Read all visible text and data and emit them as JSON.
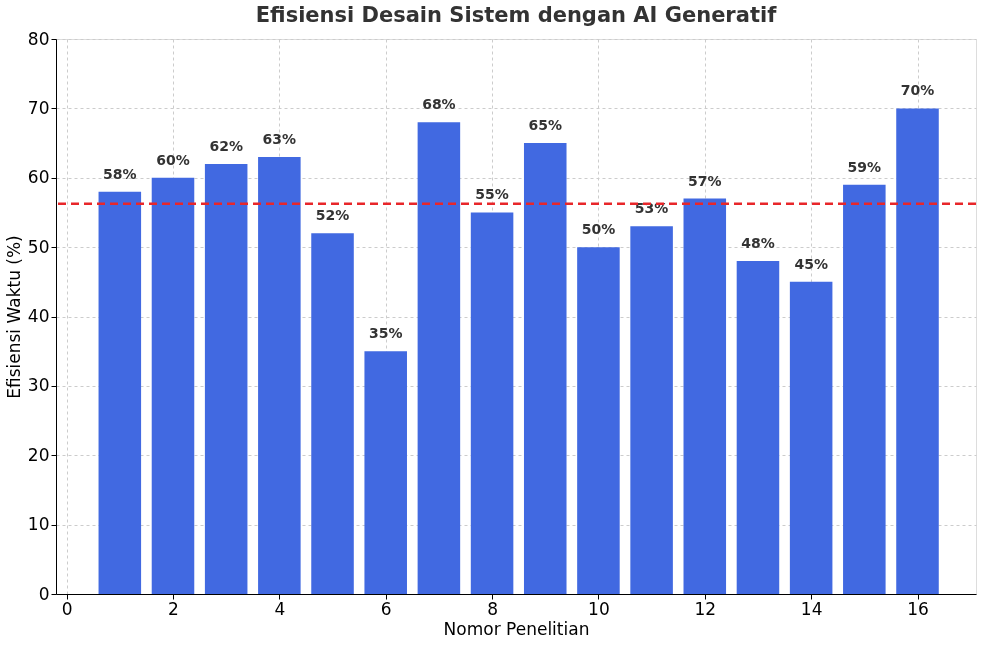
{
  "chart_data": {
    "type": "bar",
    "title": "Efisiensi Desain Sistem dengan AI Generatif",
    "xlabel": "Nomor Penelitian",
    "ylabel": "Efisiensi Waktu (%)",
    "x": [
      1,
      2,
      3,
      4,
      5,
      6,
      7,
      8,
      9,
      10,
      11,
      12,
      13,
      14,
      15,
      16
    ],
    "values": [
      58,
      60,
      62,
      63,
      52,
      35,
      68,
      55,
      65,
      50,
      53,
      57,
      48,
      45,
      59,
      70
    ],
    "value_labels": [
      "58%",
      "60%",
      "62%",
      "63%",
      "52%",
      "35%",
      "68%",
      "55%",
      "65%",
      "50%",
      "53%",
      "57%",
      "48%",
      "45%",
      "59%",
      "70%"
    ],
    "color": "#4169e1",
    "xlim": [
      -0.2,
      17.1
    ],
    "xticks": [
      0,
      2,
      4,
      6,
      8,
      10,
      12,
      14,
      16
    ],
    "ylim": [
      0,
      80
    ],
    "yticks": [
      0,
      10,
      20,
      30,
      40,
      50,
      60,
      70,
      80
    ],
    "grid": true,
    "ref_lines": [
      {
        "axis": "y",
        "value": 56.25,
        "label": null,
        "color": "#e8262a",
        "line_style": "dashed"
      }
    ]
  }
}
